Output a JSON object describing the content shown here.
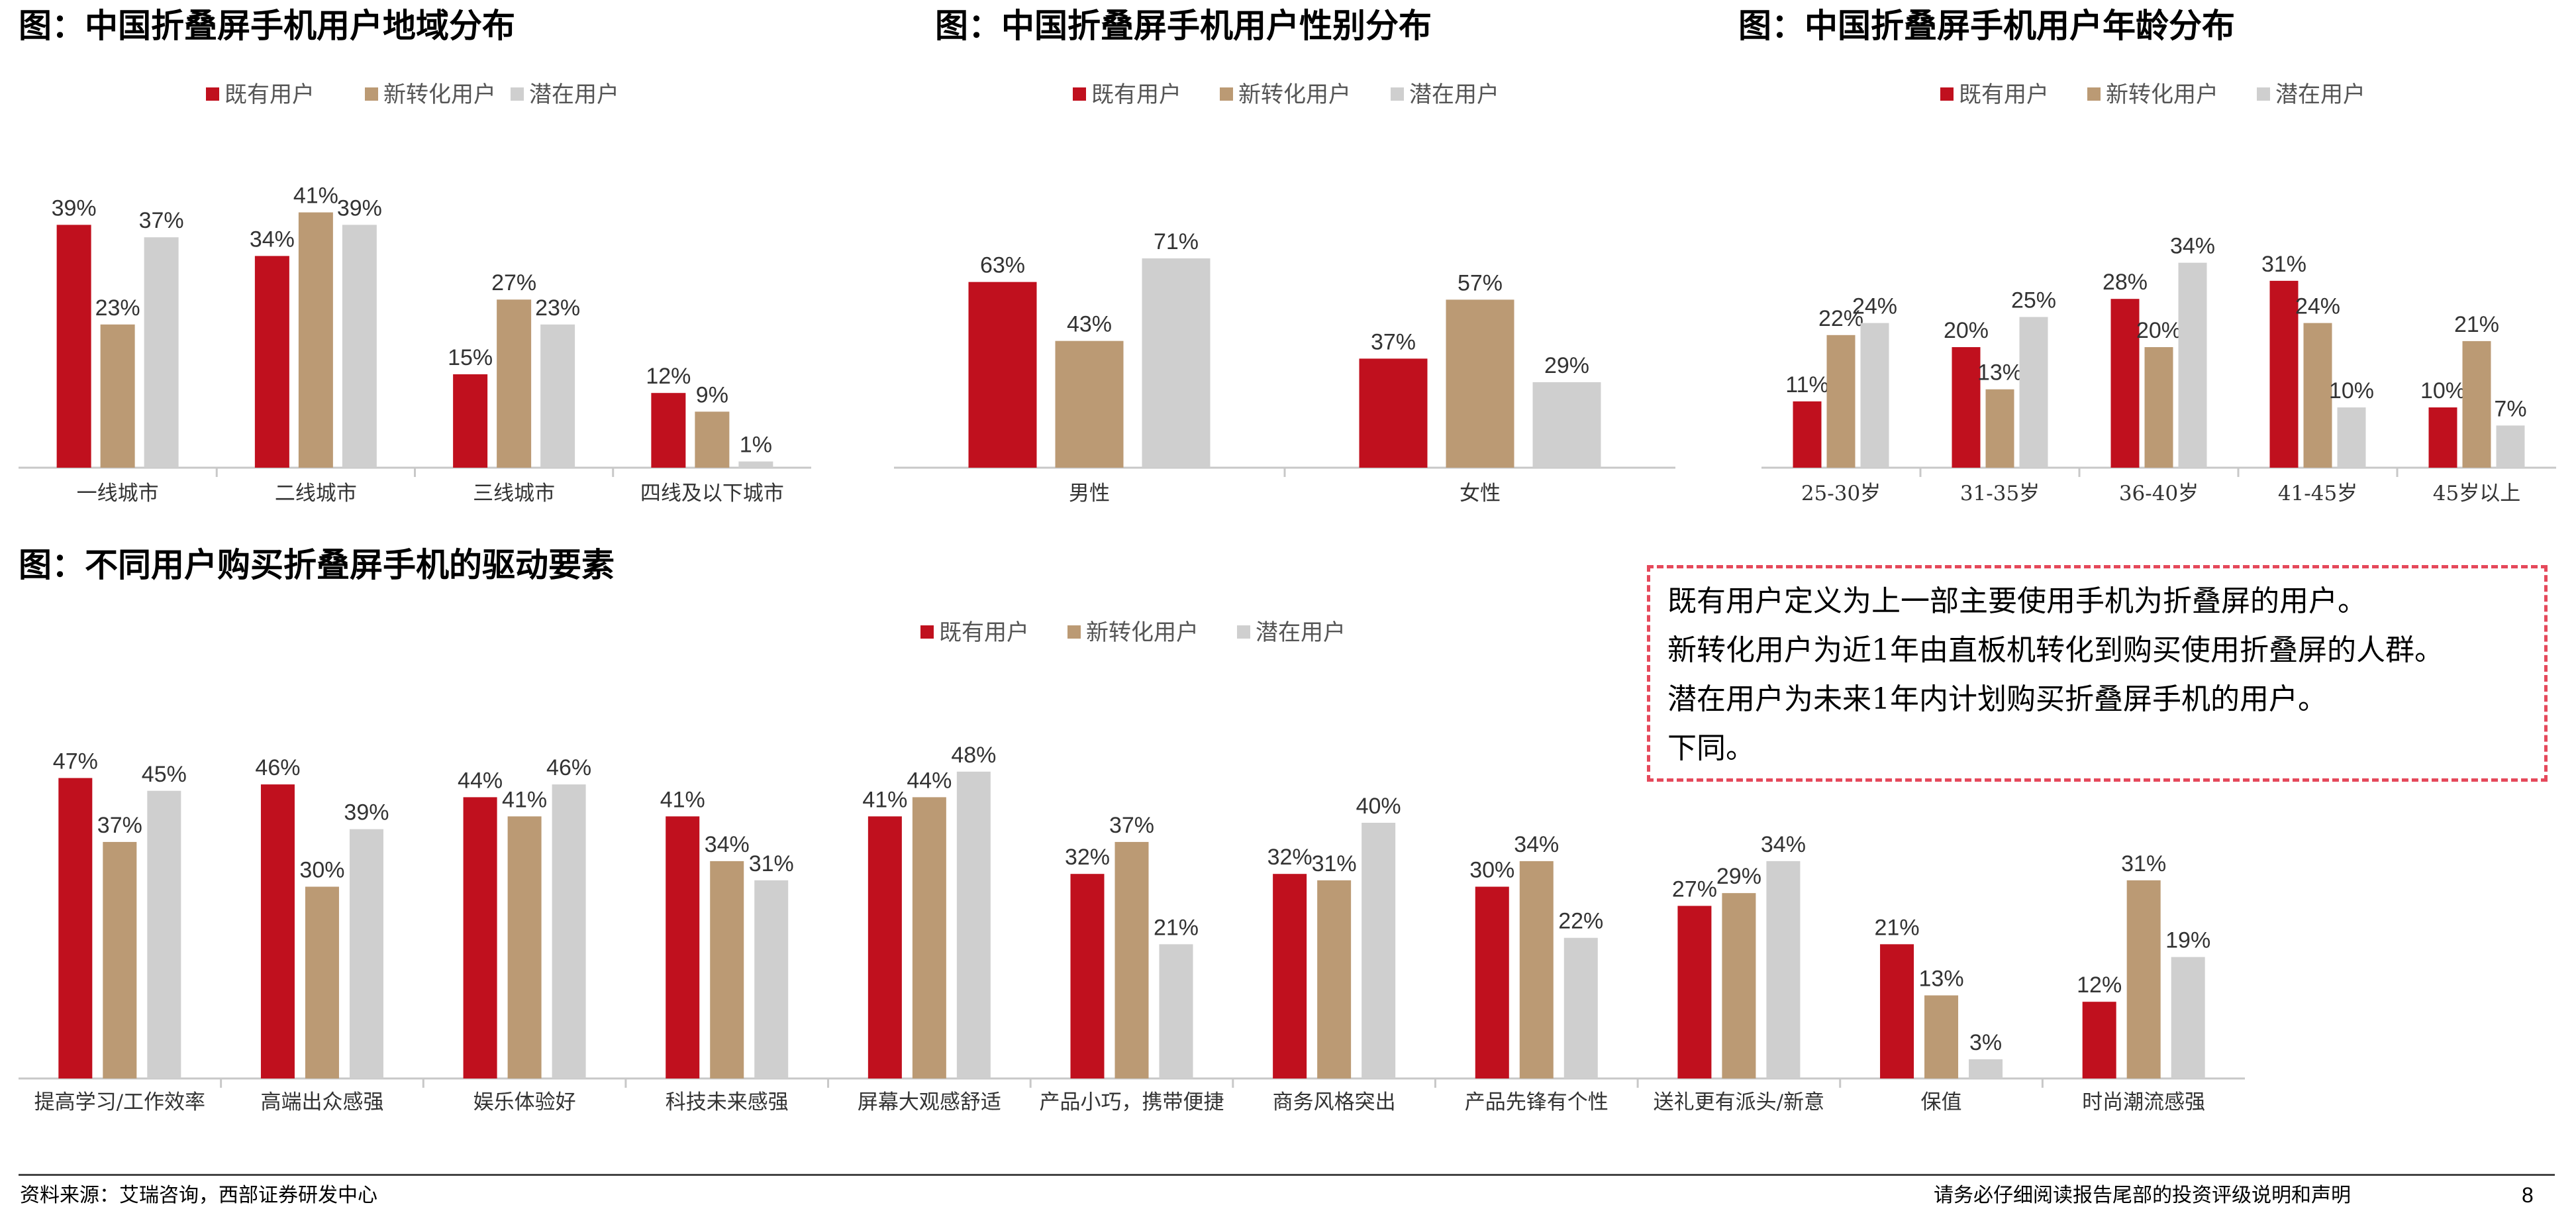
{
  "legend_labels": [
    "既有用户",
    "新转化用户",
    "潜在用户"
  ],
  "colors": {
    "existing": "#c0101e",
    "converted": "#bb9a74",
    "potential": "#cfcfcf",
    "axis": "#c8c8c8"
  },
  "chart_data": [
    {
      "type": "bar",
      "title": "图：中国折叠屏手机用户地域分布",
      "categories": [
        "一线城市",
        "二线城市",
        "三线城市",
        "四线及以下城市"
      ],
      "series": [
        {
          "name": "既有用户",
          "values": [
            39,
            34,
            15,
            12
          ],
          "labels": [
            "39%",
            "34%",
            "15%",
            "12%"
          ]
        },
        {
          "name": "新转化用户",
          "values": [
            23,
            41,
            27,
            9
          ],
          "labels": [
            "23%",
            "41%",
            "27%",
            "9%"
          ]
        },
        {
          "name": "潜在用户",
          "values": [
            37,
            39,
            23,
            1
          ],
          "labels": [
            "37%",
            "39%",
            "23%",
            "1%"
          ]
        }
      ],
      "legend": "top-center",
      "grid": false
    },
    {
      "type": "bar",
      "title": "图：中国折叠屏手机用户性别分布",
      "categories": [
        "男性",
        "女性"
      ],
      "series": [
        {
          "name": "既有用户",
          "values": [
            63,
            37
          ],
          "labels": [
            "63%",
            "37%"
          ]
        },
        {
          "name": "新转化用户",
          "values": [
            43,
            57
          ],
          "labels": [
            "43%",
            "57%"
          ]
        },
        {
          "name": "潜在用户",
          "values": [
            71,
            29
          ],
          "labels": [
            "71%",
            "29%"
          ]
        }
      ],
      "legend": "top-center",
      "grid": false
    },
    {
      "type": "bar",
      "title": "图：中国折叠屏手机用户年龄分布",
      "categories": [
        "25-30岁",
        "31-35岁",
        "36-40岁",
        "41-45岁",
        "45岁以上"
      ],
      "series": [
        {
          "name": "既有用户",
          "values": [
            11,
            20,
            28,
            31,
            10
          ],
          "labels": [
            "11%",
            "20%",
            "28%",
            "31%",
            "10%"
          ]
        },
        {
          "name": "新转化用户",
          "values": [
            22,
            13,
            20,
            24,
            21
          ],
          "labels": [
            "22%",
            "13%",
            "20%",
            "24%",
            "21%"
          ]
        },
        {
          "name": "潜在用户",
          "values": [
            24,
            25,
            34,
            10,
            7
          ],
          "labels": [
            "24%",
            "25%",
            "34%",
            "10%",
            "7%"
          ]
        }
      ],
      "legend": "top-center",
      "grid": false
    },
    {
      "type": "bar",
      "title": "图：不同用户购买折叠屏手机的驱动要素",
      "categories": [
        "提高学习/工作效率",
        "高端出众感强",
        "娱乐体验好",
        "科技未来感强",
        "屏幕大观感舒适",
        "产品小巧，携带便捷",
        "商务风格突出",
        "产品先锋有个性",
        "送礼更有派头/新意",
        "保值",
        "时尚潮流感强"
      ],
      "series": [
        {
          "name": "既有用户",
          "values": [
            47,
            46,
            44,
            41,
            41,
            32,
            32,
            30,
            27,
            21,
            12
          ],
          "labels": [
            "47%",
            "46%",
            "44%",
            "41%",
            "41%",
            "32%",
            "32%",
            "30%",
            "27%",
            "21%",
            "12%"
          ]
        },
        {
          "name": "新转化用户",
          "values": [
            37,
            30,
            41,
            34,
            44,
            37,
            31,
            34,
            29,
            13,
            31
          ],
          "labels": [
            "37%",
            "30%",
            "41%",
            "34%",
            "44%",
            "37%",
            "31%",
            "34%",
            "29%",
            "13%",
            "31%"
          ]
        },
        {
          "name": "潜在用户",
          "values": [
            45,
            39,
            46,
            31,
            48,
            21,
            40,
            22,
            34,
            3,
            19
          ],
          "labels": [
            "45%",
            "39%",
            "46%",
            "31%",
            "48%",
            "21%",
            "40%",
            "22%",
            "34%",
            "3%",
            "19%"
          ]
        }
      ],
      "legend": "top-center",
      "grid": false
    }
  ],
  "note_lines": [
    "既有用户定义为上一部主要使用手机为折叠屏的用户。",
    "新转化用户为近1年由直板机转化到购买使用折叠屏的人群。",
    "潜在用户为未来1年内计划购买折叠屏手机的用户。",
    "下同。"
  ],
  "footer": {
    "source": "资料来源：艾瑞咨询，西部证券研发中心",
    "disclaimer": "请务必仔细阅读报告尾部的投资评级说明和声明",
    "page_number": "8"
  }
}
